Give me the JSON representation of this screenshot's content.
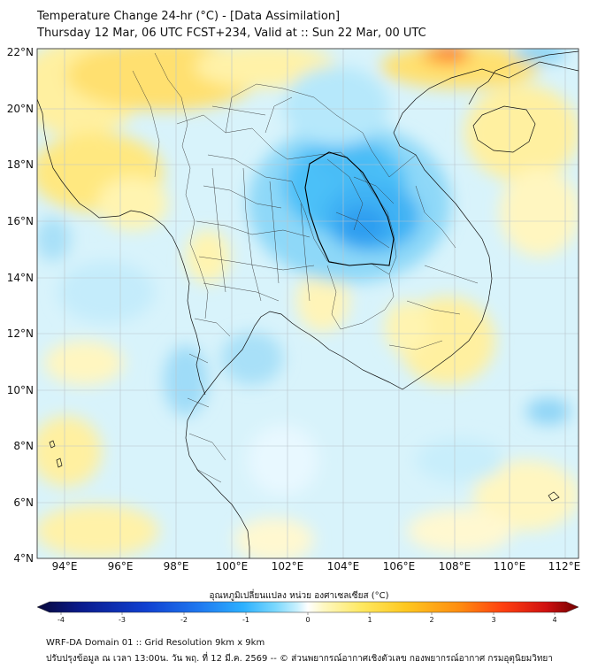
{
  "header": {
    "title_line1": "Temperature Change 24-hr (°C) - [Data Assimilation]",
    "title_line2": "Thursday 12 Mar, 06 UTC FCST+234, Valid at :: Sun 22 Mar, 00 UTC"
  },
  "map": {
    "lat_labels": [
      "22°N",
      "20°N",
      "18°N",
      "16°N",
      "14°N",
      "12°N",
      "10°N",
      "8°N",
      "6°N",
      "4°N"
    ],
    "lon_labels": [
      "94°E",
      "96°E",
      "98°E",
      "100°E",
      "102°E",
      "104°E",
      "106°E",
      "108°E",
      "110°E",
      "112°E"
    ],
    "lat_range": [
      4,
      22
    ],
    "lon_range": [
      93,
      112.5
    ]
  },
  "colorbar": {
    "title": "อุณหภูมิเปลี่ยนแปลง หน่วย องศาเซลเซียส (°C)",
    "ticks": [
      "-4",
      "-3",
      "-2",
      "-1",
      "0",
      "1",
      "2",
      "3",
      "4"
    ],
    "range": [
      -4,
      4
    ],
    "colors": [
      "#08083a",
      "#0a1a8c",
      "#1040d0",
      "#1e78f0",
      "#2cb0ff",
      "#7ad8ff",
      "#c8f0ff",
      "#ffffff",
      "#fff8c0",
      "#ffe860",
      "#ffc820",
      "#ff8c10",
      "#ff4010",
      "#d01010",
      "#700000"
    ]
  },
  "footer": {
    "line1": "WRF-DA Domain 01 :: Grid Resolution 9km x 9km",
    "line2": "ปรับปรุงข้อมูล ณ เวลา 13:00น. วัน พฤ. ที่ 12 มี.ค. 2569 -- © ส่วนพยากรณ์อากาศเชิงตัวเลข กองพยากรณ์อากาศ กรมอุตุนิยมวิทยา"
  }
}
